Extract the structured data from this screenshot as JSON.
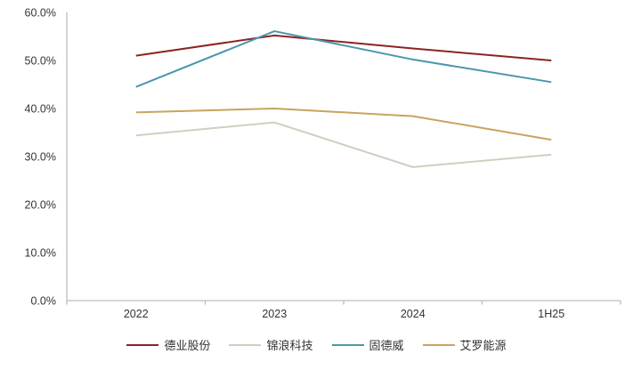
{
  "chart_data": {
    "type": "line",
    "title": "",
    "xlabel": "",
    "ylabel": "",
    "categories": [
      "2022",
      "2023",
      "2024",
      "1H25"
    ],
    "series": [
      {
        "name": "德业股份",
        "color": "#8C2423",
        "values": [
          51.0,
          55.2,
          52.5,
          50.0
        ]
      },
      {
        "name": "锦浪科技",
        "color": "#D1CEC1",
        "values": [
          34.4,
          37.1,
          27.8,
          30.4
        ]
      },
      {
        "name": "固德威",
        "color": "#4C96AC",
        "values": [
          44.5,
          56.1,
          50.2,
          45.5
        ]
      },
      {
        "name": "艾罗能源",
        "color": "#C9A35F",
        "values": [
          39.2,
          40.0,
          38.4,
          33.5
        ]
      }
    ],
    "ylim": [
      0,
      60
    ],
    "ytick_step": 10,
    "ytick_labels": [
      "0.0%",
      "10.0%",
      "20.0%",
      "30.0%",
      "40.0%",
      "50.0%",
      "60.0%"
    ],
    "grid": false,
    "legend_position": "bottom",
    "axis_color": "#BDBDBD",
    "text_color": "#333333"
  }
}
